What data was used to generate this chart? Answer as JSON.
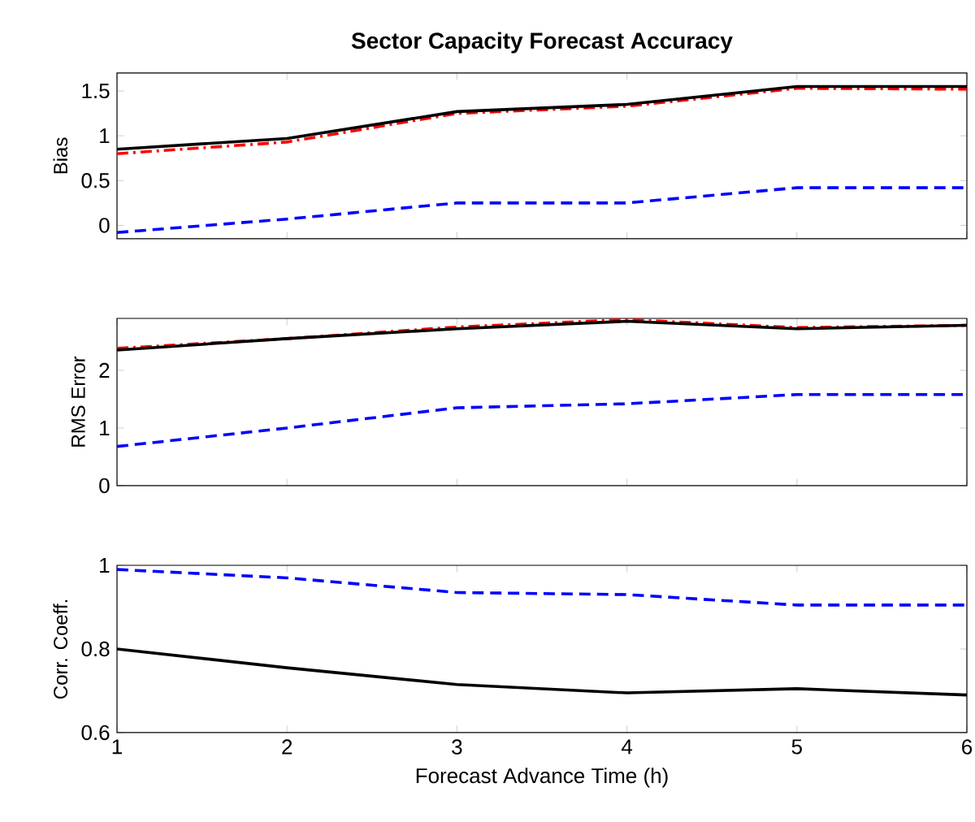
{
  "chart_data": [
    {
      "type": "line",
      "title": "Sector Capacity Forecast Accuracy",
      "ylabel": "Bias",
      "x": [
        1,
        2,
        3,
        4,
        5,
        6
      ],
      "xlim": [
        1,
        6
      ],
      "xticks": [
        1,
        2,
        3,
        4,
        5,
        6
      ],
      "ylim": [
        -0.15,
        1.7
      ],
      "yticks": [
        0,
        0.5,
        1,
        1.5
      ],
      "tick_labels": "y",
      "series": [
        {
          "color": "#0000ff",
          "line_style": "dashed",
          "values": [
            -0.08,
            0.07,
            0.25,
            0.25,
            0.42,
            0.42
          ]
        },
        {
          "color": "#ff0000",
          "line_style": "dashdot",
          "values": [
            0.8,
            0.93,
            1.25,
            1.33,
            1.53,
            1.52
          ]
        },
        {
          "color": "#000000",
          "line_style": "solid",
          "values": [
            0.85,
            0.97,
            1.27,
            1.35,
            1.55,
            1.55
          ]
        }
      ]
    },
    {
      "type": "line",
      "ylabel": "RMS Error",
      "x": [
        1,
        2,
        3,
        4,
        5,
        6
      ],
      "xlim": [
        1,
        6
      ],
      "xticks": [
        1,
        2,
        3,
        4,
        5,
        6
      ],
      "ylim": [
        0,
        2.9
      ],
      "yticks": [
        0,
        1,
        2
      ],
      "tick_labels": "y",
      "series": [
        {
          "color": "#0000ff",
          "line_style": "dashed",
          "values": [
            0.68,
            1.0,
            1.35,
            1.42,
            1.58,
            1.58
          ]
        },
        {
          "color": "#ff0000",
          "line_style": "dashdot",
          "values": [
            2.38,
            2.55,
            2.75,
            2.88,
            2.74,
            2.78
          ]
        },
        {
          "color": "#000000",
          "line_style": "solid",
          "values": [
            2.35,
            2.55,
            2.72,
            2.85,
            2.72,
            2.78
          ]
        }
      ]
    },
    {
      "type": "line",
      "ylabel": "Corr. Coeff.",
      "xlabel": "Forecast Advance Time (h)",
      "x": [
        1,
        2,
        3,
        4,
        5,
        6
      ],
      "xlim": [
        1,
        6
      ],
      "xticks": [
        1,
        2,
        3,
        4,
        5,
        6
      ],
      "ylim": [
        0.6,
        1
      ],
      "yticks": [
        0.6,
        0.8,
        1
      ],
      "series": [
        {
          "color": "#0000ff",
          "line_style": "dashed",
          "values": [
            0.99,
            0.97,
            0.935,
            0.93,
            0.905,
            0.905
          ]
        },
        {
          "color": "#000000",
          "line_style": "solid",
          "values": [
            0.8,
            0.755,
            0.715,
            0.695,
            0.705,
            0.69
          ]
        }
      ]
    }
  ]
}
